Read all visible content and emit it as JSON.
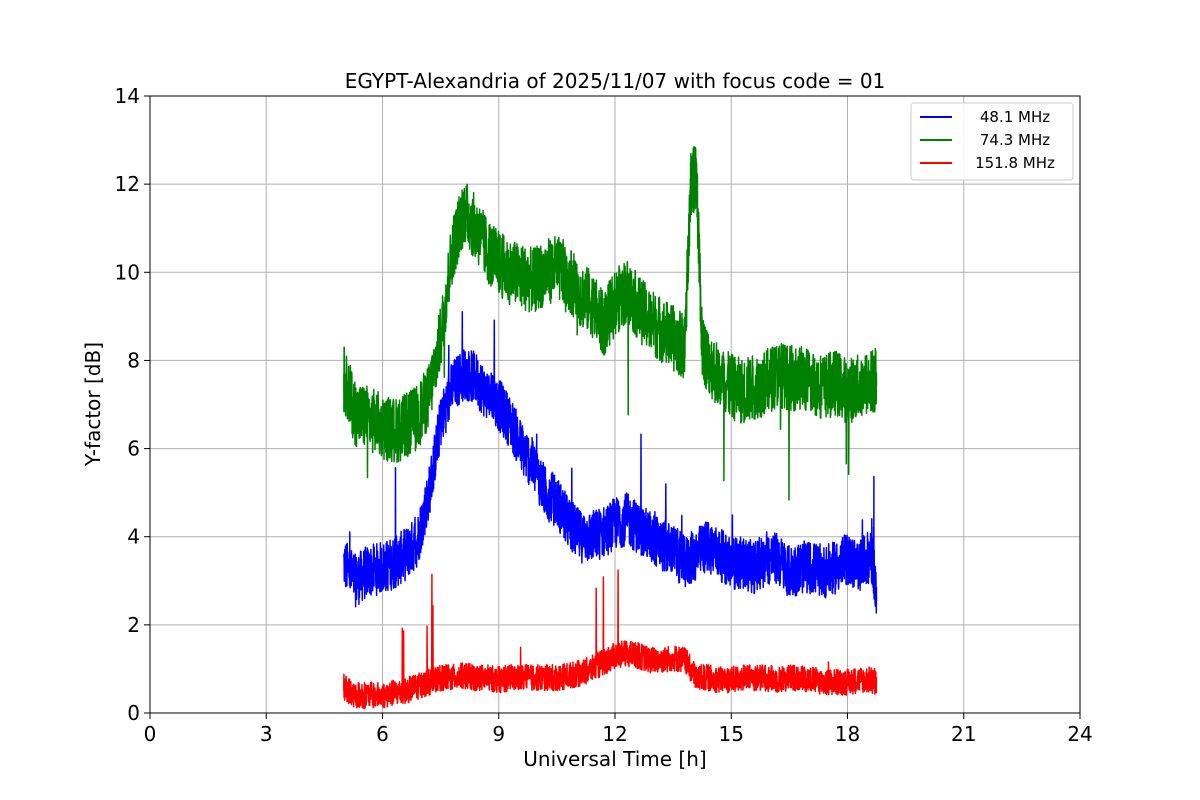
{
  "chart_data": {
    "type": "line",
    "title": "EGYPT-Alexandria of 2025/11/07 with focus code = 01",
    "xlabel": "Universal Time [h]",
    "ylabel": "Y-factor [dB]",
    "xlim": [
      0,
      24
    ],
    "ylim": [
      0,
      14
    ],
    "xticks": [
      0,
      3,
      6,
      9,
      12,
      15,
      18,
      21,
      24
    ],
    "yticks": [
      0,
      2,
      4,
      6,
      8,
      10,
      12,
      14
    ],
    "grid": true,
    "legend_position": "top-right",
    "series": [
      {
        "name": "48.1 MHz",
        "color": "#0000ff",
        "x": [
          5.0,
          5.3,
          5.6,
          6.0,
          6.3,
          6.6,
          6.9,
          7.2,
          7.5,
          7.8,
          8.1,
          8.4,
          8.7,
          9.0,
          9.3,
          9.6,
          9.9,
          10.2,
          10.5,
          10.8,
          11.1,
          11.4,
          11.7,
          12.0,
          12.3,
          12.6,
          12.9,
          13.2,
          13.5,
          13.8,
          14.1,
          14.4,
          14.7,
          15.0,
          15.3,
          15.6,
          15.9,
          16.2,
          16.5,
          16.8,
          17.1,
          17.4,
          17.7,
          18.0,
          18.3,
          18.6,
          18.75
        ],
        "base": [
          3.4,
          3.0,
          3.2,
          3.3,
          3.4,
          3.6,
          3.9,
          5.0,
          6.6,
          7.4,
          7.7,
          7.6,
          7.2,
          7.0,
          6.6,
          6.0,
          5.6,
          5.0,
          4.8,
          4.3,
          4.0,
          4.0,
          4.1,
          4.3,
          4.4,
          4.2,
          4.0,
          3.8,
          3.7,
          3.4,
          3.6,
          3.8,
          3.6,
          3.4,
          3.4,
          3.3,
          3.5,
          3.5,
          3.2,
          3.3,
          3.3,
          3.2,
          3.3,
          3.5,
          3.3,
          3.6,
          2.8
        ],
        "noise": 0.6
      },
      {
        "name": "74.3 MHz",
        "color": "#008000",
        "x": [
          5.0,
          5.3,
          5.6,
          6.0,
          6.3,
          6.6,
          6.9,
          7.2,
          7.5,
          7.8,
          8.1,
          8.4,
          8.7,
          9.0,
          9.3,
          9.6,
          9.9,
          10.2,
          10.5,
          10.8,
          11.1,
          11.4,
          11.7,
          12.0,
          12.3,
          12.6,
          12.9,
          13.2,
          13.5,
          13.8,
          13.95,
          14.1,
          14.25,
          14.4,
          14.7,
          15.0,
          15.3,
          15.6,
          15.9,
          16.2,
          16.5,
          16.8,
          17.1,
          17.4,
          17.7,
          18.0,
          18.3,
          18.6,
          18.75
        ],
        "base": [
          7.6,
          6.8,
          6.7,
          6.5,
          6.4,
          6.5,
          6.7,
          7.2,
          8.5,
          10.5,
          11.4,
          11.0,
          10.5,
          10.2,
          10.0,
          9.9,
          9.8,
          10.0,
          10.1,
          9.9,
          9.5,
          9.3,
          8.8,
          9.3,
          9.6,
          9.2,
          8.9,
          8.7,
          8.5,
          8.3,
          12.0,
          12.2,
          8.3,
          8.0,
          7.6,
          7.4,
          7.3,
          7.4,
          7.5,
          7.7,
          7.6,
          7.6,
          7.5,
          7.4,
          7.5,
          7.3,
          7.4,
          7.5,
          7.6
        ],
        "noise": 0.75
      },
      {
        "name": "151.8 MHz",
        "color": "#ff0000",
        "x": [
          5.0,
          5.3,
          5.6,
          6.0,
          6.3,
          6.6,
          6.9,
          7.2,
          7.5,
          7.8,
          8.1,
          8.4,
          8.7,
          9.0,
          9.3,
          9.6,
          9.9,
          10.2,
          10.5,
          10.8,
          11.1,
          11.4,
          11.7,
          12.0,
          12.3,
          12.6,
          12.9,
          13.2,
          13.5,
          13.8,
          14.1,
          14.4,
          14.7,
          15.0,
          15.3,
          15.6,
          15.9,
          16.2,
          16.5,
          16.8,
          17.1,
          17.4,
          17.7,
          18.0,
          18.3,
          18.6,
          18.75
        ],
        "base": [
          0.6,
          0.4,
          0.4,
          0.4,
          0.45,
          0.5,
          0.6,
          0.7,
          0.8,
          0.8,
          0.85,
          0.8,
          0.8,
          0.75,
          0.8,
          0.8,
          0.8,
          0.8,
          0.8,
          0.85,
          0.9,
          1.0,
          1.15,
          1.3,
          1.35,
          1.3,
          1.2,
          1.2,
          1.25,
          1.2,
          0.8,
          0.8,
          0.75,
          0.75,
          0.8,
          0.8,
          0.8,
          0.75,
          0.8,
          0.8,
          0.75,
          0.7,
          0.7,
          0.7,
          0.75,
          0.75,
          0.7
        ],
        "noise": 0.3
      }
    ]
  }
}
